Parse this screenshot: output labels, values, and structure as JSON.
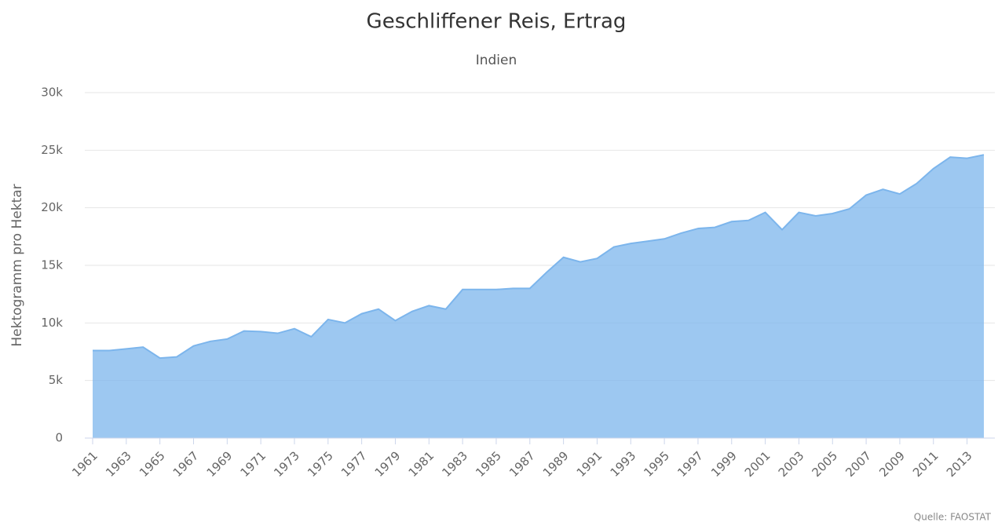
{
  "chart_data": {
    "type": "area",
    "title": "Geschliffener Reis, Ertrag",
    "subtitle": "Indien",
    "y_label": "Hektogramm pro Hektar",
    "credits": "Quelle: FAOSTAT",
    "x": [
      1961,
      1962,
      1963,
      1964,
      1965,
      1966,
      1967,
      1968,
      1969,
      1970,
      1971,
      1972,
      1973,
      1974,
      1975,
      1976,
      1977,
      1978,
      1979,
      1980,
      1981,
      1982,
      1983,
      1984,
      1985,
      1986,
      1987,
      1988,
      1989,
      1990,
      1991,
      1992,
      1993,
      1994,
      1995,
      1996,
      1997,
      1998,
      1999,
      2000,
      2001,
      2002,
      2003,
      2004,
      2005,
      2006,
      2007,
      2008,
      2009,
      2010,
      2011,
      2012,
      2013,
      2014
    ],
    "values": [
      7600,
      7600,
      7750,
      7900,
      6950,
      7050,
      8000,
      8400,
      8600,
      9300,
      9250,
      9100,
      9500,
      8800,
      10300,
      10000,
      10800,
      11200,
      10200,
      11000,
      11500,
      11200,
      12900,
      12900,
      12900,
      13000,
      13000,
      14400,
      15700,
      15300,
      15600,
      16600,
      16900,
      17100,
      17300,
      17800,
      18200,
      18300,
      18800,
      18900,
      19600,
      18100,
      19600,
      19300,
      19500,
      19900,
      21100,
      21600,
      21200,
      22100,
      23400,
      24400,
      24300,
      24600
    ],
    "color": "#7cb5ec",
    "xlim": [
      1961,
      2014
    ],
    "xticks": [
      1961,
      1963,
      1965,
      1967,
      1969,
      1971,
      1973,
      1975,
      1977,
      1979,
      1981,
      1983,
      1985,
      1987,
      1989,
      1991,
      1993,
      1995,
      1997,
      1999,
      2001,
      2003,
      2005,
      2007,
      2009,
      2011,
      2013
    ],
    "ylim": [
      0,
      30000
    ],
    "yticks": [
      0,
      {
        "value": 5000,
        "label": "5k"
      },
      {
        "value": 10000,
        "label": "10k"
      },
      {
        "value": 15000,
        "label": "15k"
      },
      {
        "value": 20000,
        "label": "20k"
      },
      {
        "value": 25000,
        "label": "25k"
      },
      {
        "value": 30000,
        "label": "30k"
      }
    ],
    "grid": true
  }
}
